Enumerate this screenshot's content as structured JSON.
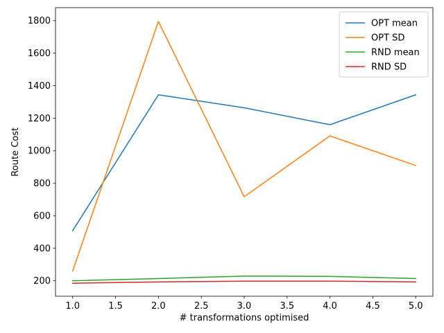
{
  "chart_data": {
    "type": "line",
    "title": "",
    "xlabel": "# transformations optimised",
    "ylabel": "Route Cost",
    "x": [
      1.0,
      2.0,
      3.0,
      4.0,
      5.0
    ],
    "xlim": [
      0.8,
      5.2
    ],
    "ylim": [
      105,
      1880
    ],
    "xticks": [
      1.0,
      1.5,
      2.0,
      2.5,
      3.0,
      3.5,
      4.0,
      4.5,
      5.0
    ],
    "xtick_labels": [
      "1.0",
      "1.5",
      "2.0",
      "2.5",
      "3.0",
      "3.5",
      "4.0",
      "4.5",
      "5.0"
    ],
    "yticks": [
      200,
      400,
      600,
      800,
      1000,
      1200,
      1400,
      1600,
      1800
    ],
    "ytick_labels": [
      "200",
      "400",
      "600",
      "800",
      "1000",
      "1200",
      "1400",
      "1600",
      "1800"
    ],
    "grid": false,
    "legend_position": "top-right",
    "series": [
      {
        "name": "OPT mean",
        "color": "#1f77b4",
        "values": [
          508,
          1344,
          1264,
          1160,
          1344
        ]
      },
      {
        "name": "OPT SD",
        "color": "#ff7f0e",
        "values": [
          260,
          1795,
          717,
          1091,
          909
        ]
      },
      {
        "name": "RND mean",
        "color": "#2ca02c",
        "values": [
          200,
          214,
          229,
          227,
          214
        ]
      },
      {
        "name": "RND SD",
        "color": "#d62728",
        "values": [
          185,
          193,
          198,
          198,
          193
        ]
      }
    ]
  }
}
